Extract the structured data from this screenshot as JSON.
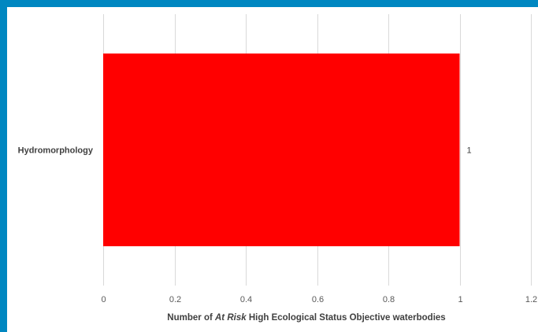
{
  "frame": {
    "accent_color": "#0087c1"
  },
  "chart_data": {
    "type": "bar",
    "orientation": "horizontal",
    "categories": [
      "Hydromorphology"
    ],
    "values": [
      1
    ],
    "data_labels": [
      "1"
    ],
    "bar_color": "#ff0000",
    "xlabel_parts": [
      {
        "text": "Number of ",
        "italic": false
      },
      {
        "text": "At Risk",
        "italic": true
      },
      {
        "text": " High Ecological Status Objective waterbodies",
        "italic": false
      }
    ],
    "xlim": [
      0,
      1.2
    ],
    "xticks": [
      0,
      0.2,
      0.4,
      0.6,
      0.8,
      1,
      1.2
    ],
    "xtick_labels": [
      "0",
      "0.2",
      "0.4",
      "0.6",
      "0.8",
      "1",
      "1.2"
    ],
    "grid": true,
    "legend": "none"
  }
}
